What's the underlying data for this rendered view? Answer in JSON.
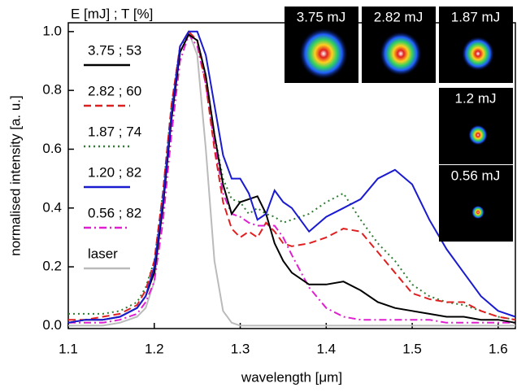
{
  "chart_data": {
    "type": "line",
    "x_label": "wavelength [μm]",
    "y_label": "normalised intensity [a. u.]",
    "legend_title": "E [mJ] ; T [%]",
    "legend_position": "upper left",
    "xlim": [
      1.1,
      1.62
    ],
    "ylim": [
      -0.01,
      1.03
    ],
    "xticks": [
      1.1,
      1.2,
      1.3,
      1.4,
      1.5,
      1.6
    ],
    "yticks": [
      {
        "value": 0,
        "label": "0.0"
      },
      {
        "value": 0.2,
        "label": "0.2"
      },
      {
        "value": 0.4,
        "label": "0.4"
      },
      {
        "value": 0.6,
        "label": "0.6"
      },
      {
        "value": 0.8,
        "label": "0.8"
      },
      {
        "value": 1,
        "label": "1.0"
      }
    ],
    "x": [
      1.1,
      1.12,
      1.14,
      1.16,
      1.18,
      1.19,
      1.2,
      1.21,
      1.22,
      1.23,
      1.24,
      1.25,
      1.26,
      1.27,
      1.28,
      1.29,
      1.3,
      1.31,
      1.32,
      1.33,
      1.34,
      1.35,
      1.36,
      1.38,
      1.4,
      1.42,
      1.44,
      1.46,
      1.48,
      1.5,
      1.52,
      1.54,
      1.56,
      1.58,
      1.6,
      1.62
    ],
    "series": [
      {
        "name": "3.75 ; 53",
        "color": "#000000",
        "dash": "solid",
        "values": [
          0.01,
          0.02,
          0.02,
          0.03,
          0.06,
          0.1,
          0.18,
          0.4,
          0.7,
          0.93,
          0.99,
          0.97,
          0.85,
          0.65,
          0.48,
          0.38,
          0.42,
          0.43,
          0.44,
          0.38,
          0.28,
          0.22,
          0.18,
          0.14,
          0.14,
          0.15,
          0.12,
          0.08,
          0.06,
          0.05,
          0.04,
          0.03,
          0.03,
          0.02,
          0.02,
          0.01
        ]
      },
      {
        "name": "2.82 ; 60",
        "color": "#e02020",
        "dash": "dashed",
        "values": [
          0.02,
          0.02,
          0.03,
          0.04,
          0.07,
          0.12,
          0.22,
          0.45,
          0.75,
          0.95,
          1.0,
          0.97,
          0.82,
          0.6,
          0.42,
          0.33,
          0.3,
          0.32,
          0.3,
          0.35,
          0.32,
          0.28,
          0.27,
          0.28,
          0.3,
          0.33,
          0.32,
          0.25,
          0.18,
          0.11,
          0.09,
          0.08,
          0.08,
          0.05,
          0.03,
          0.02
        ]
      },
      {
        "name": "1.87 ; 74",
        "color": "#2e7d32",
        "dash": "dotted",
        "values": [
          0.04,
          0.04,
          0.04,
          0.05,
          0.08,
          0.13,
          0.22,
          0.45,
          0.75,
          0.95,
          0.99,
          0.97,
          0.85,
          0.65,
          0.5,
          0.43,
          0.42,
          0.38,
          0.4,
          0.38,
          0.37,
          0.35,
          0.36,
          0.38,
          0.42,
          0.45,
          0.36,
          0.28,
          0.22,
          0.14,
          0.1,
          0.08,
          0.07,
          0.05,
          0.03,
          0.02
        ]
      },
      {
        "name": "1.20 ; 82",
        "color": "#1a1ad0",
        "dash": "solid",
        "values": [
          0.01,
          0.02,
          0.02,
          0.03,
          0.06,
          0.1,
          0.2,
          0.42,
          0.72,
          0.95,
          1.0,
          1.0,
          0.92,
          0.75,
          0.58,
          0.5,
          0.5,
          0.45,
          0.36,
          0.38,
          0.46,
          0.42,
          0.4,
          0.32,
          0.37,
          0.4,
          0.43,
          0.5,
          0.53,
          0.48,
          0.36,
          0.26,
          0.18,
          0.1,
          0.05,
          0.03
        ]
      },
      {
        "name": "0.56 ; 82",
        "color": "#e020d0",
        "dash": "dashdot",
        "values": [
          0.01,
          0.01,
          0.01,
          0.02,
          0.04,
          0.08,
          0.15,
          0.35,
          0.65,
          0.9,
          0.99,
          0.95,
          0.82,
          0.62,
          0.45,
          0.38,
          0.37,
          0.35,
          0.34,
          0.34,
          0.34,
          0.3,
          0.24,
          0.13,
          0.06,
          0.03,
          0.02,
          0.02,
          0.02,
          0.02,
          0.02,
          0.01,
          0.01,
          0.01,
          0.01,
          0.01
        ]
      },
      {
        "name": "laser",
        "color": "#bbbbbb",
        "dash": "solid",
        "values": [
          0,
          0,
          0,
          0.01,
          0.03,
          0.06,
          0.15,
          0.4,
          0.72,
          0.95,
          1.0,
          0.92,
          0.6,
          0.22,
          0.05,
          0.01,
          0,
          0,
          0,
          0,
          0,
          0,
          0,
          0,
          0,
          0,
          0,
          0,
          0,
          0,
          0,
          0,
          0,
          0,
          0,
          0
        ]
      }
    ],
    "insets": [
      "3.75 mJ",
      "2.82 mJ",
      "1.87 mJ",
      "1.2 mJ",
      "0.56 mJ"
    ]
  }
}
